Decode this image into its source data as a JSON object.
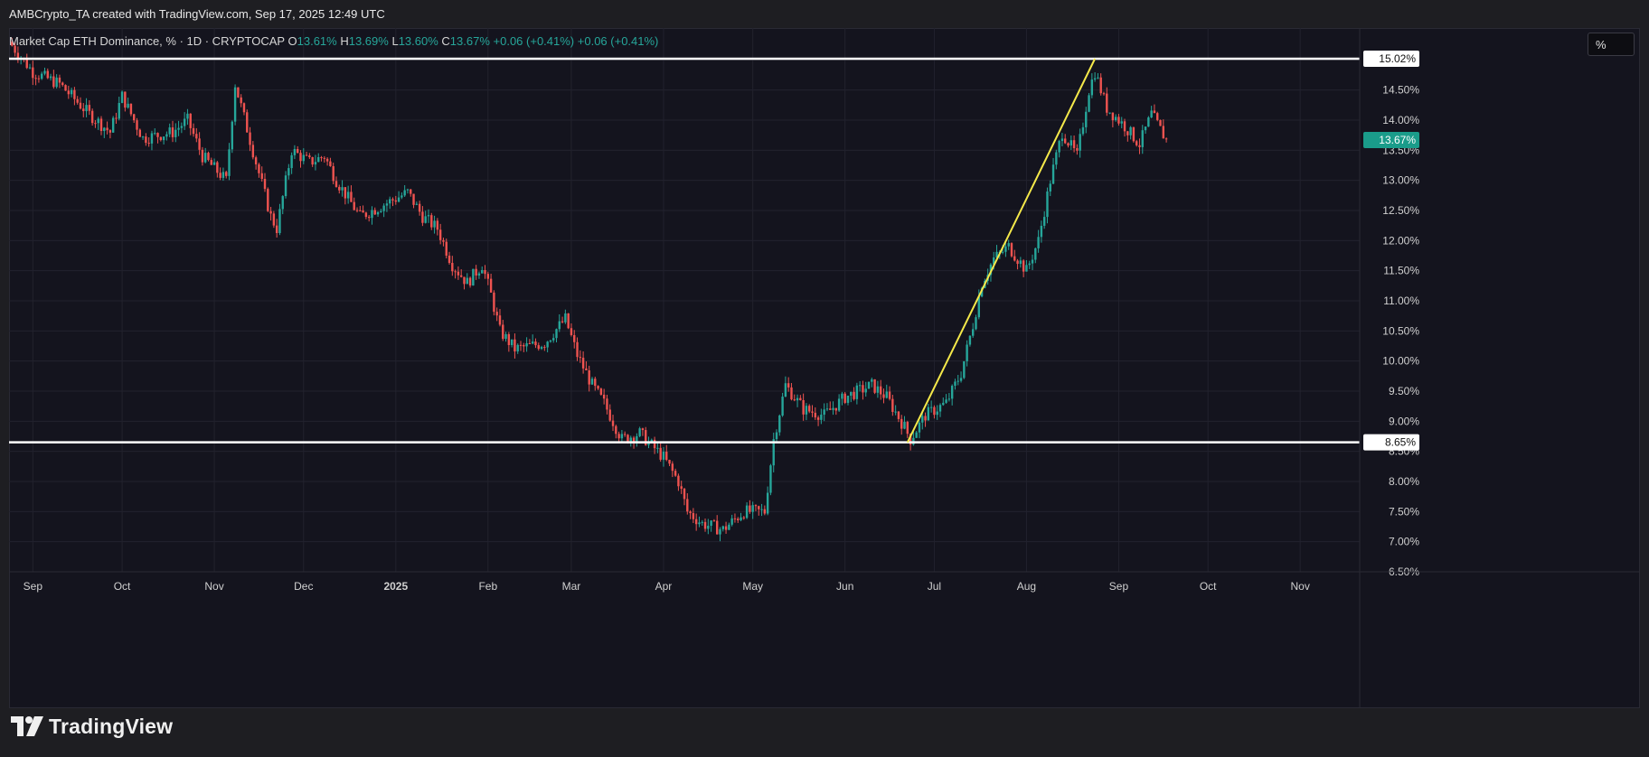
{
  "header": {
    "attribution": "AMBCrypto_TA created with TradingView.com, Sep 17, 2025 12:49 UTC"
  },
  "legend": {
    "symbol": "Market Cap ETH Dominance, % · 1D · CRYPTOCAP",
    "o_label": "O",
    "o_value": "13.61%",
    "h_label": "H",
    "h_value": "13.69%",
    "l_label": "L",
    "l_value": "13.60%",
    "c_label": "C",
    "c_value": "13.67%",
    "change1": "+0.06 (+0.41%)",
    "change2": "+0.06 (+0.41%)"
  },
  "toolbar": {
    "scale_button": "%"
  },
  "footer": {
    "brand": "TradingView",
    "logo_icon": "tradingview-logo-icon"
  },
  "colors": {
    "up": "#26a69a",
    "down": "#ef5350",
    "background": "#14141e",
    "horizontal_line": "#ffffff",
    "trend_line": "#f5e94a",
    "price_badge": "#1a9c8a"
  },
  "chart_data": {
    "type": "candlestick",
    "title": "Market Cap ETH Dominance, % · 1D · CRYPTOCAP",
    "x_ticks": [
      "Sep",
      "Oct",
      "Nov",
      "Dec",
      "2025",
      "Feb",
      "Mar",
      "Apr",
      "May",
      "Jun",
      "Jul",
      "Aug",
      "Sep",
      "Oct",
      "Nov"
    ],
    "y_ticks": [
      "15.00%",
      "14.50%",
      "14.00%",
      "13.50%",
      "13.00%",
      "12.50%",
      "12.00%",
      "11.50%",
      "11.00%",
      "10.50%",
      "10.00%",
      "9.50%",
      "9.00%",
      "8.50%",
      "8.00%",
      "7.50%",
      "7.00%",
      "6.50%"
    ],
    "ylim": [
      6.5,
      15.2
    ],
    "y_unit": "%",
    "grid": true,
    "last_price_label": "13.67%",
    "horizontal_levels": [
      {
        "value": 15.02,
        "label": "15.02%"
      },
      {
        "value": 8.65,
        "label": "8.65%"
      }
    ],
    "trend_line": {
      "from": [
        "2025-06-22",
        8.65
      ],
      "to": [
        "2025-08-24",
        15.02
      ]
    },
    "series": [
      {
        "values": [
          [
            "2024-08-24",
            15.3
          ],
          [
            "2024-09-01",
            14.8
          ],
          [
            "2024-09-10",
            14.6
          ],
          [
            "2024-09-20",
            14.1
          ],
          [
            "2024-09-27",
            13.8
          ],
          [
            "2024-10-01",
            14.4
          ],
          [
            "2024-10-08",
            13.7
          ],
          [
            "2024-10-18",
            13.8
          ],
          [
            "2024-10-23",
            14.0
          ],
          [
            "2024-10-28",
            13.4
          ],
          [
            "2024-11-05",
            13.0
          ],
          [
            "2024-11-08",
            14.6
          ],
          [
            "2024-11-15",
            13.3
          ],
          [
            "2024-11-20",
            12.4
          ],
          [
            "2024-11-22",
            12.2
          ],
          [
            "2024-11-27",
            13.5
          ],
          [
            "2024-12-03",
            13.3
          ],
          [
            "2024-12-08",
            13.4
          ],
          [
            "2024-12-12",
            13.0
          ],
          [
            "2024-12-20",
            12.4
          ],
          [
            "2024-12-28",
            12.6
          ],
          [
            "2025-01-05",
            12.8
          ],
          [
            "2025-01-10",
            12.4
          ],
          [
            "2025-01-15",
            12.2
          ],
          [
            "2025-01-20",
            11.6
          ],
          [
            "2025-01-25",
            11.3
          ],
          [
            "2025-01-30",
            11.6
          ],
          [
            "2025-02-02",
            11.1
          ],
          [
            "2025-02-05",
            10.5
          ],
          [
            "2025-02-10",
            10.2
          ],
          [
            "2025-02-20",
            10.3
          ],
          [
            "2025-02-27",
            10.7
          ],
          [
            "2025-03-03",
            10.1
          ],
          [
            "2025-03-08",
            9.6
          ],
          [
            "2025-03-12",
            9.3
          ],
          [
            "2025-03-18",
            8.7
          ],
          [
            "2025-03-24",
            8.8
          ],
          [
            "2025-04-01",
            8.4
          ],
          [
            "2025-04-06",
            8.0
          ],
          [
            "2025-04-09",
            7.5
          ],
          [
            "2025-04-14",
            7.3
          ],
          [
            "2025-04-21",
            7.2
          ],
          [
            "2025-04-28",
            7.5
          ],
          [
            "2025-05-05",
            7.5
          ],
          [
            "2025-05-08",
            8.7
          ],
          [
            "2025-05-12",
            9.6
          ],
          [
            "2025-05-18",
            9.2
          ],
          [
            "2025-05-25",
            9.1
          ],
          [
            "2025-06-01",
            9.4
          ],
          [
            "2025-06-10",
            9.6
          ],
          [
            "2025-06-15",
            9.4
          ],
          [
            "2025-06-21",
            8.9
          ],
          [
            "2025-06-23",
            8.7
          ],
          [
            "2025-06-28",
            9.1
          ],
          [
            "2025-07-05",
            9.3
          ],
          [
            "2025-07-10",
            9.8
          ],
          [
            "2025-07-14",
            10.6
          ],
          [
            "2025-07-17",
            11.3
          ],
          [
            "2025-07-21",
            11.7
          ],
          [
            "2025-07-26",
            11.9
          ],
          [
            "2025-08-01",
            11.5
          ],
          [
            "2025-08-05",
            12.0
          ],
          [
            "2025-08-09",
            13.0
          ],
          [
            "2025-08-13",
            13.8
          ],
          [
            "2025-08-18",
            13.4
          ],
          [
            "2025-08-22",
            14.5
          ],
          [
            "2025-08-24",
            14.8
          ],
          [
            "2025-08-28",
            14.2
          ],
          [
            "2025-09-03",
            13.9
          ],
          [
            "2025-09-08",
            13.6
          ],
          [
            "2025-09-12",
            14.1
          ],
          [
            "2025-09-17",
            13.67
          ]
        ]
      }
    ]
  }
}
